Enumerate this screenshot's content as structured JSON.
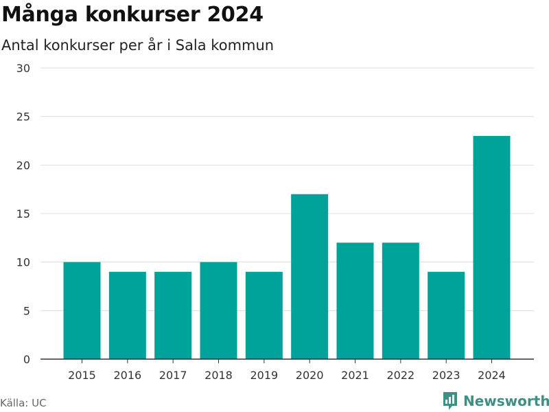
{
  "title": "Många konkurser 2024",
  "subtitle": "Antal konkurser per år i Sala kommun",
  "source": "Källa: UC",
  "brand": {
    "name": "Newsworthy",
    "icon": "newsworthy-logo-icon",
    "color": "#3f8f84"
  },
  "colors": {
    "bar": "#00a39a",
    "grid": "#dddddd",
    "axis": "#333333"
  },
  "chart_data": {
    "type": "bar",
    "title": "Många konkurser 2024",
    "subtitle": "Antal konkurser per år i Sala kommun",
    "xlabel": "",
    "ylabel": "",
    "categories": [
      "2015",
      "2016",
      "2017",
      "2018",
      "2019",
      "2020",
      "2021",
      "2022",
      "2023",
      "2024"
    ],
    "values": [
      10,
      9,
      9,
      10,
      9,
      17,
      12,
      12,
      9,
      23
    ],
    "ylim": [
      0,
      30
    ],
    "yticks": [
      0,
      5,
      10,
      15,
      20,
      25,
      30
    ],
    "grid": true,
    "legend": "none"
  }
}
